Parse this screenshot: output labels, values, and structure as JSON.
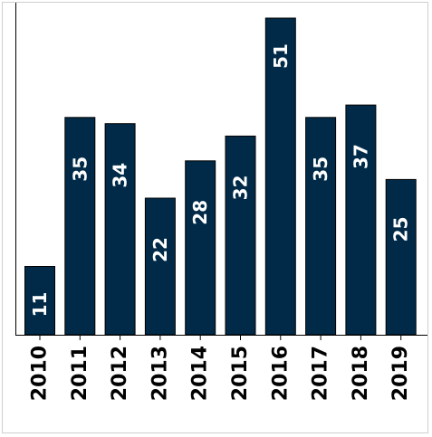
{
  "chart_data": {
    "type": "bar",
    "title": "",
    "xlabel": "",
    "ylabel": "",
    "categories": [
      "2010",
      "2011",
      "2012",
      "2013",
      "2014",
      "2015",
      "2016",
      "2017",
      "2018",
      "2019"
    ],
    "values": [
      11,
      35,
      34,
      22,
      28,
      32,
      51,
      35,
      37,
      25
    ],
    "ylim": [
      0,
      51
    ],
    "grid": false,
    "legend": "none",
    "bar_color": "#002a48",
    "label_color_inside": "#ffffff",
    "label_color_outside": "#000000"
  }
}
